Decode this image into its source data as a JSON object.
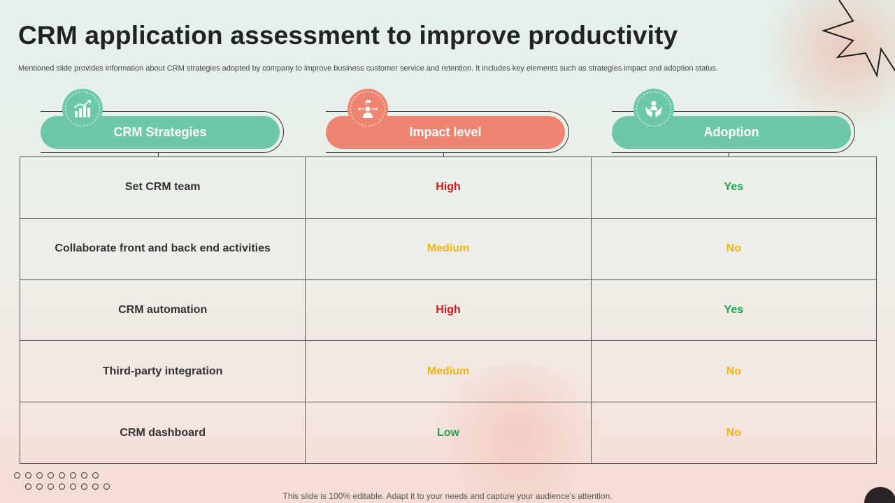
{
  "slide": {
    "title": "CRM application assessment to improve productivity",
    "subtitle": "Mentioned slide provides information about CRM strategies adopted by company to improve business customer service and retention. It includes key elements such as strategies impact and adoption status.",
    "footer": "This slide is 100% editable. Adapt it to your needs and capture your audience's attention."
  },
  "headers": [
    {
      "label": "CRM Strategies",
      "icon": "growth-chart-icon",
      "color": "#6cc7ab"
    },
    {
      "label": "Impact level",
      "icon": "presenter-icon",
      "color": "#ef8470"
    },
    {
      "label": "Adoption",
      "icon": "hands-person-icon",
      "color": "#6cc7ab"
    }
  ],
  "rows": [
    {
      "strategy": "Set CRM team",
      "impact": "High",
      "adoption": "Yes"
    },
    {
      "strategy": "Collaborate front and back end activities",
      "impact": "Medium",
      "adoption": "No"
    },
    {
      "strategy": "CRM automation",
      "impact": "High",
      "adoption": "Yes"
    },
    {
      "strategy": "Third-party integration",
      "impact": "Medium",
      "adoption": "No"
    },
    {
      "strategy": "CRM dashboard",
      "impact": "Low",
      "adoption": "No"
    }
  ],
  "status_colors": {
    "High": "#d0161c",
    "Medium": "#f0b714",
    "Low": "#1fa64a",
    "Yes": "#1fa64a",
    "No": "#f0b714"
  }
}
